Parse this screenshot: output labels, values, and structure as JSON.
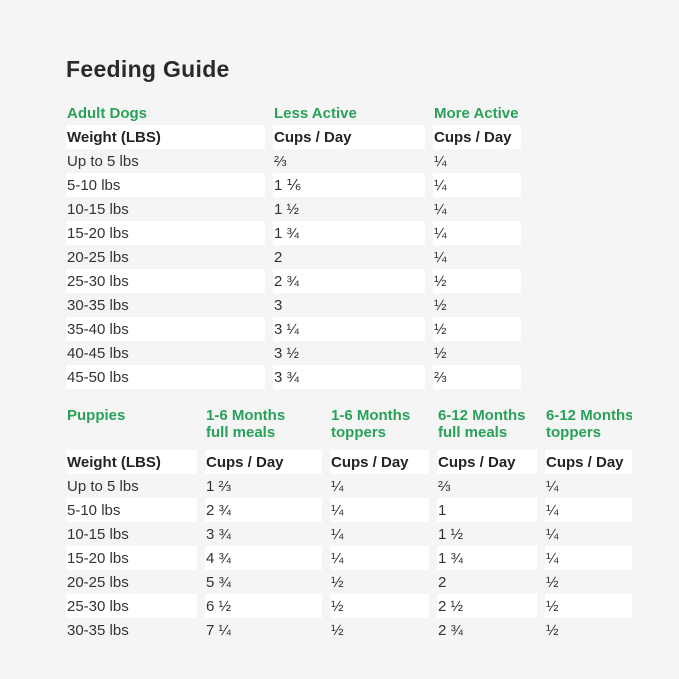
{
  "title": "Feeding Guide",
  "colors": {
    "accent_green": "#2aa158",
    "background": "#f5f5f6",
    "stripe_white": "#ffffff",
    "text_dark": "#333336"
  },
  "chart_data": [
    {
      "type": "table",
      "section_label": "Adult Dogs",
      "column_headers": [
        "Less Active",
        "More Active"
      ],
      "subheader": {
        "weight": "Weight (LBS)",
        "cups": "Cups / Day"
      },
      "rows": [
        [
          "Up to 5 lbs",
          "⅔",
          "¼"
        ],
        [
          "5-10 lbs",
          "1 ⅙",
          "¼"
        ],
        [
          "10-15 lbs",
          "1 ½",
          "¼"
        ],
        [
          "15-20 lbs",
          "1 ¾",
          "¼"
        ],
        [
          "20-25 lbs",
          "2",
          "¼"
        ],
        [
          "25-30 lbs",
          "2 ¾",
          "½"
        ],
        [
          "30-35 lbs",
          "3",
          "½"
        ],
        [
          "35-40 lbs",
          "3 ¼",
          "½"
        ],
        [
          "40-45 lbs",
          "3 ½",
          "½"
        ],
        [
          "45-50 lbs",
          "3 ¾",
          "⅔"
        ]
      ]
    },
    {
      "type": "table",
      "section_label": "Puppies",
      "column_headers": [
        [
          "1-6 Months",
          "full meals"
        ],
        [
          "1-6 Months",
          "toppers"
        ],
        [
          "6-12 Months",
          "full meals"
        ],
        [
          "6-12 Months",
          "toppers"
        ]
      ],
      "subheader": {
        "weight": "Weight (LBS)",
        "cups": "Cups / Day"
      },
      "rows": [
        [
          "Up to 5 lbs",
          "1 ⅔",
          "¼",
          "⅔",
          "¼"
        ],
        [
          "5-10 lbs",
          "2 ¾",
          "¼",
          "1",
          "¼"
        ],
        [
          "10-15 lbs",
          "3 ¾",
          "¼",
          "1 ½",
          "¼"
        ],
        [
          "15-20 lbs",
          "4 ¾",
          "¼",
          "1 ¾",
          "¼"
        ],
        [
          "20-25 lbs",
          "5 ¾",
          "½",
          "2",
          "½"
        ],
        [
          "25-30 lbs",
          "6 ½",
          "½",
          "2 ½",
          "½"
        ],
        [
          "30-35 lbs",
          "7 ¼",
          "½",
          "2 ¾",
          "½"
        ]
      ]
    }
  ]
}
